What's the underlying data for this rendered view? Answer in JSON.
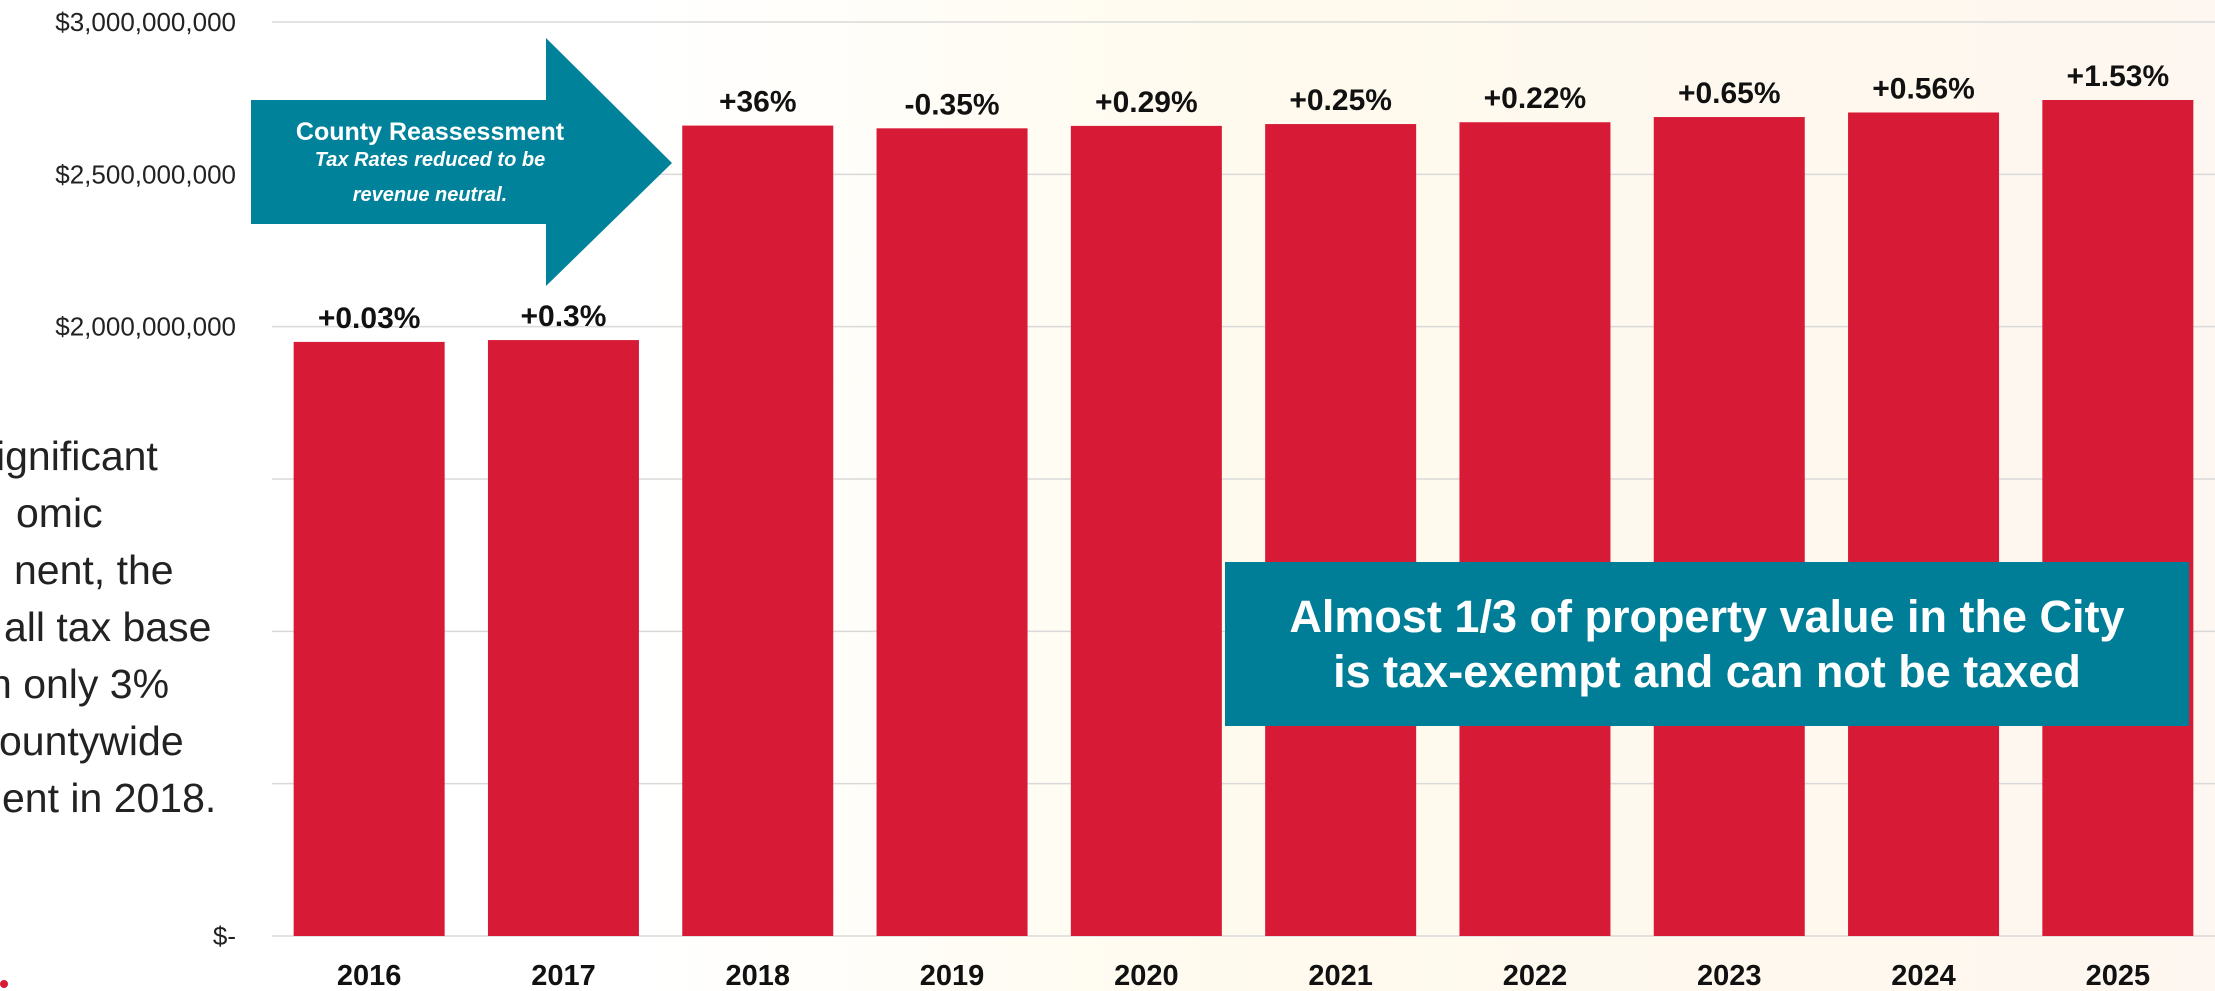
{
  "chart_data": {
    "type": "bar",
    "categories": [
      "2016",
      "2017",
      "2018",
      "2019",
      "2020",
      "2021",
      "2022",
      "2023",
      "2024",
      "2025"
    ],
    "values": [
      1950000000,
      1956000000,
      2660000000,
      2651000000,
      2659000000,
      2665000000,
      2671000000,
      2688000000,
      2703000000,
      2744000000
    ],
    "data_labels": [
      "+0.03%",
      "+0.3%",
      "+36%",
      "-0.35%",
      "+0.29%",
      "+0.25%",
      "+0.22%",
      "+0.65%",
      "+0.56%",
      "+1.53%"
    ],
    "ylim": [
      0,
      3000000000
    ],
    "yticks": [
      0,
      500000000,
      1000000000,
      1500000000,
      2000000000,
      2500000000,
      3000000000
    ],
    "ytick_labels": [
      "$-",
      "",
      "",
      "",
      "$2,000,000,000",
      "$2,500,000,000",
      "$3,000,000,000"
    ],
    "grid": true,
    "bar_color": "#d71a36",
    "title": "",
    "xlabel": "",
    "ylabel": ""
  },
  "annotation": {
    "title": "County Reassessment",
    "subtitle_line1": "Tax Rates reduced to be",
    "subtitle_line2": "revenue neutral.",
    "color": "#00829a"
  },
  "left_text": {
    "line1": "ignificant",
    "line2": "omic",
    "line3": "nent, the",
    "line4": "all tax base",
    "line5": "n only 3%",
    "line6": "ountywide",
    "line7": "ent in 2018."
  },
  "callout": {
    "line1": "Almost 1/3 of property value in the City",
    "line2": "is tax-exempt and can not be taxed",
    "color": "#007e97"
  }
}
